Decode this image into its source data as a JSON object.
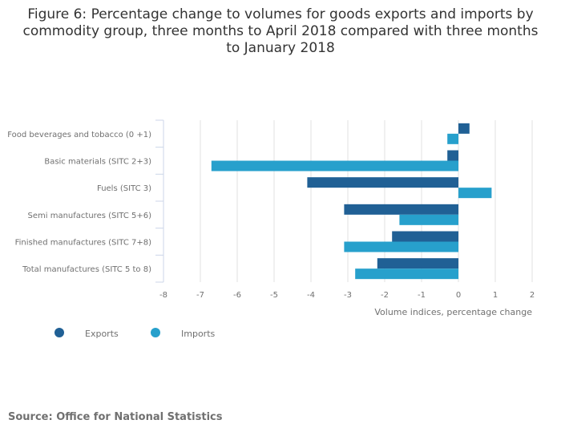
{
  "chart_data": {
    "type": "bar",
    "orientation": "horizontal",
    "title": "Figure 6: Percentage change to volumes for goods exports and imports by commodity group, three months to April 2018 compared with three months to January 2018",
    "categories": [
      "Food beverages and tobacco (0 +1)",
      "Basic materials (SITC 2+3)",
      "Fuels (SITC 3)",
      "Semi manufactures (SITC 5+6)",
      "Finished manufactures (SITC 7+8)",
      "Total manufactures (SITC 5 to 8)"
    ],
    "series": [
      {
        "name": "Exports",
        "color": "#206095",
        "values": [
          0.3,
          -0.3,
          -4.1,
          -3.1,
          -1.8,
          -2.2
        ]
      },
      {
        "name": "Imports",
        "color": "#27a0cc",
        "values": [
          -0.3,
          -6.7,
          0.9,
          -1.6,
          -3.1,
          -2.8
        ]
      }
    ],
    "xlabel": "Volume indices, percentage change",
    "ylabel": "",
    "xlim": [
      -8,
      2
    ],
    "xticks": [
      -8,
      -7,
      -6,
      -5,
      -4,
      -3,
      -2,
      -1,
      0,
      1,
      2
    ],
    "grid": true,
    "legend": "bottom-left"
  },
  "source": "Source: Office for National Statistics"
}
